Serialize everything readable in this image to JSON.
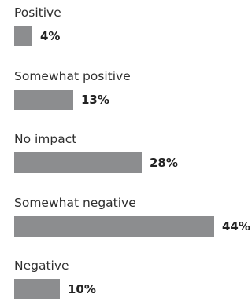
{
  "chart_data": {
    "type": "bar",
    "orientation": "horizontal",
    "categories": [
      "Positive",
      "Somewhat positive",
      "No impact",
      "Somewhat negative",
      "Negative"
    ],
    "values": [
      4,
      13,
      28,
      44,
      10
    ],
    "value_labels": [
      "4%",
      "13%",
      "28%",
      "44%",
      "10%"
    ],
    "title": "",
    "xlabel": "",
    "ylabel": "",
    "xlim": [
      0,
      44
    ],
    "grid": false,
    "colors": {
      "bar": "#8c8d8f"
    }
  }
}
